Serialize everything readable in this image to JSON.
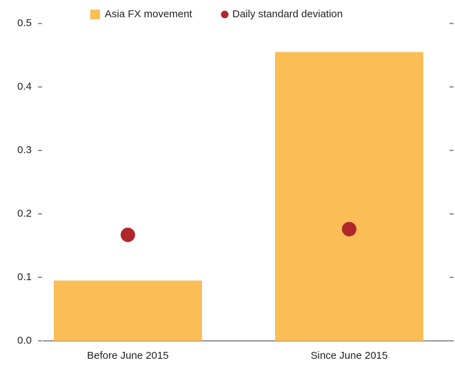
{
  "chart_data": {
    "type": "bar",
    "categories": [
      "Before June 2015",
      "Since June 2015"
    ],
    "series": [
      {
        "name": "Asia FX movement",
        "type": "bar",
        "color": "#fbbd56",
        "values": [
          0.095,
          0.455
        ]
      },
      {
        "name": "Daily standard deviation",
        "type": "dot",
        "color": "#b0262b",
        "values": [
          0.167,
          0.176
        ]
      }
    ],
    "ylim": [
      0,
      0.5
    ],
    "yticks": [
      {
        "value": 0,
        "label": "0.0"
      },
      0.1,
      0.2,
      0.3,
      0.4,
      0.5
    ]
  }
}
